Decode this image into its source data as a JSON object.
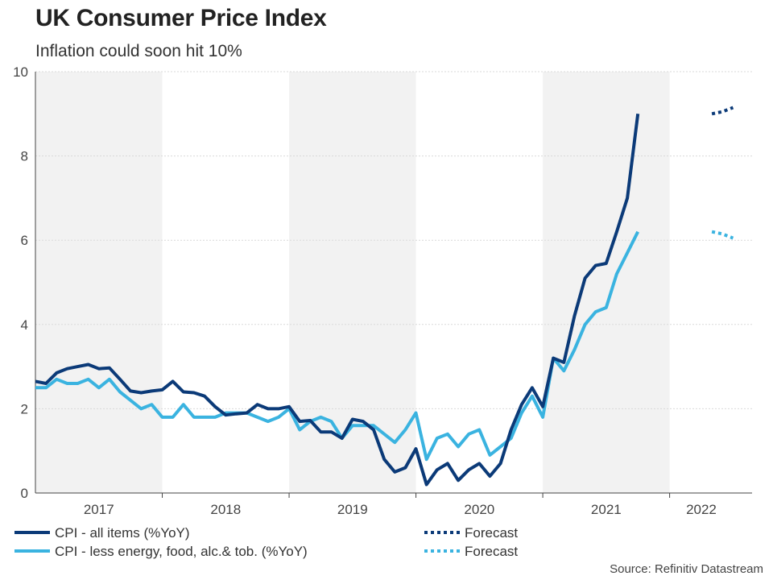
{
  "chart_data": {
    "type": "line",
    "title": "UK Consumer Price Index",
    "subtitle": "Inflation could soon hit 10%",
    "ylim": [
      0,
      10
    ],
    "yticks": [
      0,
      2,
      4,
      6,
      8,
      10
    ],
    "xlim": [
      2017.0,
      2022.65
    ],
    "years": [
      "2017",
      "2018",
      "2019",
      "2020",
      "2021",
      "2022"
    ],
    "year_label_positions": [
      2017.5,
      2018.5,
      2019.5,
      2020.5,
      2021.5,
      2022.25
    ],
    "shaded_years": [
      2017,
      2019,
      2021
    ],
    "shade_color": "#f2f2f2",
    "series": [
      {
        "name": "CPI - all items (%YoY)",
        "color": "#0b3a78",
        "style": "solid",
        "start": 2017.0,
        "step": 0.08333,
        "values": [
          2.65,
          2.6,
          2.85,
          2.95,
          3.0,
          3.05,
          2.95,
          2.97,
          2.7,
          2.42,
          2.38,
          2.42,
          2.45,
          2.65,
          2.4,
          2.38,
          2.3,
          2.05,
          1.85,
          1.88,
          1.9,
          2.1,
          2.0,
          2.0,
          2.05,
          1.7,
          1.72,
          1.45,
          1.45,
          1.3,
          1.75,
          1.7,
          1.5,
          0.8,
          0.5,
          0.6,
          1.05,
          0.2,
          0.55,
          0.7,
          0.3,
          0.55,
          0.7,
          0.4,
          0.7,
          1.5,
          2.1,
          2.5,
          2.05,
          3.2,
          3.1,
          4.2,
          5.1,
          5.4,
          5.45,
          6.2,
          7.0,
          9.0
        ]
      },
      {
        "name": "Forecast",
        "color": "#0b3a78",
        "style": "dotted",
        "start": 2022.33333,
        "step": 0.08333,
        "values": [
          9.0,
          9.05,
          9.15
        ]
      },
      {
        "name": "CPI - less energy, food, alc.& tob. (%YoY)",
        "color": "#3ab3e0",
        "style": "solid",
        "start": 2017.0,
        "step": 0.08333,
        "values": [
          2.5,
          2.5,
          2.7,
          2.6,
          2.6,
          2.7,
          2.5,
          2.7,
          2.4,
          2.2,
          2.0,
          2.1,
          1.8,
          1.8,
          2.1,
          1.8,
          1.8,
          1.8,
          1.9,
          1.9,
          1.9,
          1.8,
          1.7,
          1.8,
          2.0,
          1.5,
          1.7,
          1.8,
          1.7,
          1.3,
          1.6,
          1.6,
          1.6,
          1.4,
          1.2,
          1.5,
          1.9,
          0.8,
          1.3,
          1.4,
          1.1,
          1.4,
          1.5,
          0.9,
          1.1,
          1.3,
          1.9,
          2.3,
          1.8,
          3.2,
          2.9,
          3.4,
          4.0,
          4.3,
          4.4,
          5.2,
          5.7,
          6.2
        ]
      },
      {
        "name": "Forecast",
        "color": "#3ab3e0",
        "style": "dotted",
        "start": 2022.33333,
        "step": 0.08333,
        "values": [
          6.2,
          6.15,
          6.05
        ]
      }
    ],
    "legend": [
      {
        "label": "CPI - all items (%YoY)",
        "color": "#0b3a78",
        "style": "solid"
      },
      {
        "label": "CPI - less energy, food, alc.& tob. (%YoY)",
        "color": "#3ab3e0",
        "style": "solid"
      },
      {
        "label": "Forecast",
        "color": "#0b3a78",
        "style": "dotted"
      },
      {
        "label": "Forecast",
        "color": "#3ab3e0",
        "style": "dotted"
      }
    ],
    "source": "Source: Refinitiv Datastream"
  }
}
